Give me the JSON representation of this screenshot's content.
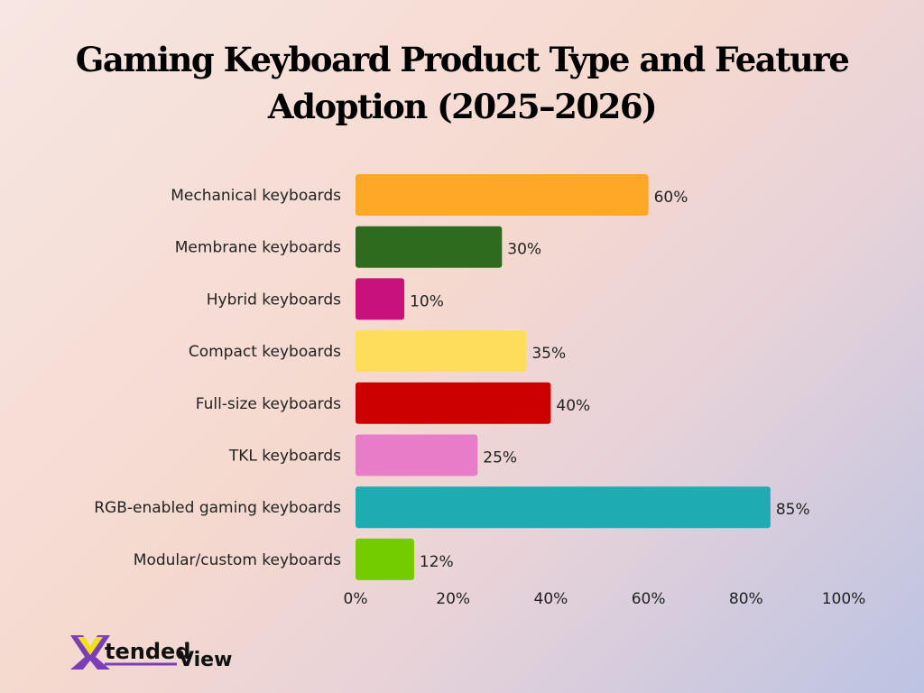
{
  "chart_data": {
    "type": "bar",
    "orientation": "horizontal",
    "title": "Gaming Keyboard Product Type and Feature Adoption (2025–2026)",
    "categories": [
      "Mechanical keyboards",
      "Membrane keyboards",
      "Hybrid keyboards",
      "Compact keyboards",
      "Full-size keyboards",
      "TKL keyboards",
      "RGB-enabled gaming keyboards",
      "Modular/custom keyboards"
    ],
    "values": [
      60,
      30,
      10,
      35,
      40,
      25,
      85,
      12
    ],
    "data_labels": [
      "60%",
      "30%",
      "10%",
      "35%",
      "40%",
      "25%",
      "85%",
      "12%"
    ],
    "colors": [
      "#ffa726",
      "#2e6b1e",
      "#c8117a",
      "#ffdd5c",
      "#cc0000",
      "#e87cc8",
      "#1eabb2",
      "#72cc00"
    ],
    "xticks": [
      "0%",
      "20%",
      "40%",
      "60%",
      "80%",
      "100%"
    ],
    "xlim": [
      0,
      100
    ],
    "xlabel": "",
    "ylabel": "",
    "grid": false
  },
  "logo": {
    "text1": "X",
    "text2": "tended",
    "text3": "View"
  }
}
